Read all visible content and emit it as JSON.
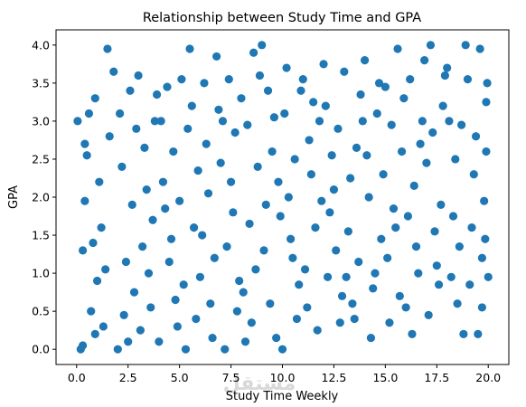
{
  "chart_data": {
    "type": "scatter",
    "title": "Relationship between Study Time and GPA",
    "xlabel": "Study Time Weekly",
    "ylabel": "GPA",
    "xlim": [
      -1,
      21
    ],
    "ylim": [
      -0.2,
      4.2
    ],
    "xticks": [
      0.0,
      2.5,
      5.0,
      7.5,
      10.0,
      12.5,
      15.0,
      17.5,
      20.0
    ],
    "xtick_labels": [
      "0.0",
      "2.5",
      "5.0",
      "7.5",
      "10.0",
      "12.5",
      "15.0",
      "17.5",
      "20.0"
    ],
    "yticks": [
      0.0,
      0.5,
      1.0,
      1.5,
      2.0,
      2.5,
      3.0,
      3.5,
      4.0
    ],
    "ytick_labels": [
      "0.0",
      "0.5",
      "1.0",
      "1.5",
      "2.0",
      "2.5",
      "3.0",
      "3.5",
      "4.0"
    ],
    "grid": false,
    "legend": "none",
    "marker_color": "#1f77b4",
    "watermark": "مستقل",
    "series": [
      {
        "points": [
          [
            0.05,
            3.0
          ],
          [
            0.3,
            0.05
          ],
          [
            0.4,
            1.95
          ],
          [
            0.6,
            3.1
          ],
          [
            0.2,
            0.0
          ],
          [
            0.5,
            2.55
          ],
          [
            0.8,
            1.4
          ],
          [
            0.9,
            3.3
          ],
          [
            1.0,
            0.9
          ],
          [
            1.1,
            2.2
          ],
          [
            0.7,
            0.5
          ],
          [
            1.3,
            0.3
          ],
          [
            1.5,
            3.95
          ],
          [
            1.6,
            2.8
          ],
          [
            1.8,
            3.65
          ],
          [
            1.2,
            1.6
          ],
          [
            0.4,
            2.7
          ],
          [
            0.3,
            1.3
          ],
          [
            0.9,
            0.2
          ],
          [
            1.4,
            1.05
          ],
          [
            2.0,
            0.0
          ],
          [
            2.2,
            2.4
          ],
          [
            2.4,
            1.15
          ],
          [
            2.6,
            3.4
          ],
          [
            2.8,
            0.75
          ],
          [
            2.1,
            3.1
          ],
          [
            2.3,
            0.45
          ],
          [
            2.7,
            1.9
          ],
          [
            2.9,
            2.9
          ],
          [
            2.5,
            0.1
          ],
          [
            3.0,
            3.6
          ],
          [
            3.2,
            1.35
          ],
          [
            3.4,
            2.1
          ],
          [
            3.6,
            0.55
          ],
          [
            3.8,
            3.0
          ],
          [
            3.1,
            0.25
          ],
          [
            3.3,
            2.65
          ],
          [
            3.7,
            1.7
          ],
          [
            3.9,
            3.35
          ],
          [
            3.5,
            1.0
          ],
          [
            4.0,
            0.1
          ],
          [
            4.2,
            2.2
          ],
          [
            4.4,
            3.45
          ],
          [
            4.6,
            1.45
          ],
          [
            4.8,
            0.65
          ],
          [
            4.1,
            3.0
          ],
          [
            4.3,
            1.85
          ],
          [
            4.7,
            2.6
          ],
          [
            4.9,
            0.3
          ],
          [
            4.5,
            1.15
          ],
          [
            5.1,
            3.55
          ],
          [
            5.3,
            0.0
          ],
          [
            5.5,
            3.95
          ],
          [
            5.7,
            1.6
          ],
          [
            5.9,
            2.35
          ],
          [
            5.2,
            0.85
          ],
          [
            5.4,
            2.9
          ],
          [
            5.8,
            0.4
          ],
          [
            5.6,
            3.2
          ],
          [
            5.0,
            1.95
          ],
          [
            6.0,
            0.95
          ],
          [
            6.2,
            3.5
          ],
          [
            6.4,
            2.05
          ],
          [
            6.6,
            0.15
          ],
          [
            6.8,
            3.85
          ],
          [
            6.1,
            1.5
          ],
          [
            6.3,
            2.7
          ],
          [
            6.7,
            1.2
          ],
          [
            6.9,
            3.15
          ],
          [
            6.5,
            0.6
          ],
          [
            7.0,
            2.45
          ],
          [
            7.2,
            0.0
          ],
          [
            7.4,
            3.55
          ],
          [
            7.6,
            1.8
          ],
          [
            7.8,
            0.5
          ],
          [
            7.1,
            3.0
          ],
          [
            7.3,
            1.35
          ],
          [
            7.7,
            2.85
          ],
          [
            7.9,
            0.9
          ],
          [
            7.5,
            2.2
          ],
          [
            8.0,
            3.3
          ],
          [
            8.2,
            0.1
          ],
          [
            8.4,
            1.65
          ],
          [
            8.6,
            3.9
          ],
          [
            8.8,
            2.4
          ],
          [
            8.1,
            0.75
          ],
          [
            8.3,
            2.95
          ],
          [
            8.7,
            1.05
          ],
          [
            8.9,
            3.6
          ],
          [
            8.5,
            0.35
          ],
          [
            9.0,
            4.0
          ],
          [
            9.2,
            1.9
          ],
          [
            9.4,
            0.6
          ],
          [
            9.6,
            3.05
          ],
          [
            9.8,
            2.2
          ],
          [
            9.1,
            1.3
          ],
          [
            9.3,
            3.4
          ],
          [
            9.7,
            0.15
          ],
          [
            9.9,
            1.75
          ],
          [
            9.5,
            2.6
          ],
          [
            10.0,
            0.0
          ],
          [
            10.2,
            3.7
          ],
          [
            10.4,
            1.45
          ],
          [
            10.6,
            2.5
          ],
          [
            10.8,
            0.85
          ],
          [
            10.1,
            3.1
          ],
          [
            10.3,
            2.0
          ],
          [
            10.7,
            0.4
          ],
          [
            10.9,
            3.4
          ],
          [
            10.5,
            1.2
          ],
          [
            11.0,
            3.55
          ],
          [
            11.2,
            0.55
          ],
          [
            11.4,
            2.3
          ],
          [
            11.6,
            1.6
          ],
          [
            11.8,
            3.0
          ],
          [
            11.1,
            1.05
          ],
          [
            11.3,
            2.75
          ],
          [
            11.7,
            0.25
          ],
          [
            11.9,
            1.95
          ],
          [
            11.5,
            3.25
          ],
          [
            12.0,
            3.75
          ],
          [
            12.2,
            0.95
          ],
          [
            12.4,
            2.55
          ],
          [
            12.6,
            1.3
          ],
          [
            12.8,
            0.35
          ],
          [
            12.1,
            3.2
          ],
          [
            12.3,
            1.8
          ],
          [
            12.7,
            2.9
          ],
          [
            12.9,
            0.7
          ],
          [
            12.5,
            2.1
          ],
          [
            13.0,
            3.65
          ],
          [
            13.2,
            1.55
          ],
          [
            13.4,
            0.6
          ],
          [
            13.6,
            2.65
          ],
          [
            13.8,
            3.35
          ],
          [
            13.1,
            0.95
          ],
          [
            13.3,
            2.25
          ],
          [
            13.7,
            1.15
          ],
          [
            13.9,
            3.0
          ],
          [
            13.5,
            0.4
          ],
          [
            14.0,
            3.8
          ],
          [
            14.2,
            2.0
          ],
          [
            14.4,
            0.8
          ],
          [
            14.6,
            3.1
          ],
          [
            14.8,
            1.45
          ],
          [
            14.1,
            2.55
          ],
          [
            14.3,
            0.15
          ],
          [
            14.7,
            3.5
          ],
          [
            14.9,
            2.3
          ],
          [
            14.5,
            1.0
          ],
          [
            15.0,
            3.45
          ],
          [
            15.2,
            0.35
          ],
          [
            15.4,
            1.85
          ],
          [
            15.6,
            3.95
          ],
          [
            15.8,
            2.6
          ],
          [
            15.1,
            1.2
          ],
          [
            15.3,
            2.95
          ],
          [
            15.7,
            0.7
          ],
          [
            15.9,
            3.3
          ],
          [
            15.5,
            1.6
          ],
          [
            16.0,
            0.55
          ],
          [
            16.2,
            3.55
          ],
          [
            16.4,
            2.15
          ],
          [
            16.6,
            1.0
          ],
          [
            16.8,
            3.0
          ],
          [
            16.1,
            1.75
          ],
          [
            16.3,
            0.2
          ],
          [
            16.7,
            2.7
          ],
          [
            16.9,
            3.8
          ],
          [
            16.5,
            1.35
          ],
          [
            17.0,
            2.45
          ],
          [
            17.2,
            4.0
          ],
          [
            17.4,
            1.55
          ],
          [
            17.6,
            0.85
          ],
          [
            17.8,
            3.2
          ],
          [
            17.1,
            0.45
          ],
          [
            17.3,
            2.85
          ],
          [
            17.7,
            1.9
          ],
          [
            17.9,
            3.6
          ],
          [
            17.5,
            1.1
          ],
          [
            18.0,
            3.7
          ],
          [
            18.2,
            0.95
          ],
          [
            18.4,
            2.5
          ],
          [
            18.6,
            1.35
          ],
          [
            18.8,
            0.2
          ],
          [
            18.1,
            3.0
          ],
          [
            18.3,
            1.75
          ],
          [
            18.7,
            2.95
          ],
          [
            18.9,
            4.0
          ],
          [
            18.5,
            0.6
          ],
          [
            19.0,
            3.55
          ],
          [
            19.2,
            1.6
          ],
          [
            19.4,
            2.8
          ],
          [
            19.5,
            0.2
          ],
          [
            19.6,
            3.95
          ],
          [
            19.1,
            0.85
          ],
          [
            19.3,
            2.3
          ],
          [
            19.7,
            1.2
          ],
          [
            19.9,
            3.25
          ],
          [
            20.0,
            0.95
          ],
          [
            19.8,
            1.95
          ],
          [
            19.9,
            2.6
          ],
          [
            19.95,
            3.5
          ],
          [
            19.7,
            0.55
          ],
          [
            19.85,
            1.45
          ]
        ]
      }
    ]
  }
}
